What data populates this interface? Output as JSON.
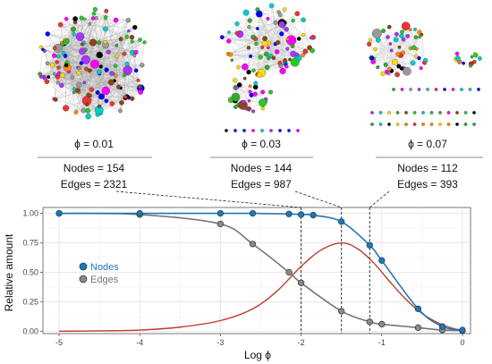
{
  "networks": [
    {
      "phi_label": "ϕ = 0.01",
      "nodes_label": "Nodes = 154",
      "edges_label": "Edges = 2321"
    },
    {
      "phi_label": "ϕ = 0.03",
      "nodes_label": "Nodes = 144",
      "edges_label": "Edges = 987"
    },
    {
      "phi_label": "ϕ = 0.07",
      "nodes_label": "Nodes = 112",
      "edges_label": "Edges = 393"
    }
  ],
  "colors": {
    "nodes": "#1f77b4",
    "edges": "#777777",
    "ratio_curve": "#c0392b",
    "network_palette": [
      "#22cc22",
      "#00cccc",
      "#0000ff",
      "#ff00ff",
      "#ffdd00",
      "#ff8800",
      "#8b4513",
      "#000000",
      "#999999",
      "#ee3333",
      "#33aa33",
      "#aa33ff"
    ]
  },
  "chart_data": {
    "type": "line",
    "xlabel": "Log ϕ",
    "ylabel": "Relative amount",
    "xlim": [
      -5.2,
      0.1
    ],
    "ylim": [
      -0.02,
      1.05
    ],
    "x_ticks": [
      -5,
      -4,
      -3,
      -2,
      -1,
      0
    ],
    "x_tick_labels": [
      "-5",
      "-4",
      "-3",
      "-2",
      "-1",
      "0"
    ],
    "y_ticks": [
      0.0,
      0.25,
      0.5,
      0.75,
      1.0
    ],
    "y_tick_labels": [
      "0.00",
      "0.25",
      "0.50",
      "0.75",
      "1.00"
    ],
    "grid": true,
    "legend_position": "left",
    "series": [
      {
        "name": "Nodes",
        "marker": "points-and-smooth-line",
        "x": [
          -5,
          -4,
          -3,
          -2.6,
          -2.15,
          -2.0,
          -1.85,
          -1.5,
          -1.15,
          -1.0,
          -0.55,
          -0.25,
          0
        ],
        "y": [
          1.0,
          1.0,
          1.0,
          1.0,
          0.995,
          0.99,
          0.985,
          0.93,
          0.73,
          0.6,
          0.19,
          0.04,
          0.01
        ]
      },
      {
        "name": "Edges",
        "marker": "points-and-smooth-line",
        "x": [
          -5,
          -4,
          -3,
          -2.6,
          -2.15,
          -2.0,
          -1.5,
          -1.15,
          -1.0,
          -0.55,
          -0.25,
          0
        ],
        "y": [
          1.0,
          0.99,
          0.91,
          0.74,
          0.5,
          0.41,
          0.17,
          0.08,
          0.06,
          0.03,
          0.01,
          0.005
        ]
      },
      {
        "marker": "line",
        "x": [
          -5,
          -4.5,
          -4,
          -3.5,
          -3,
          -2.6,
          -2.3,
          -2.0,
          -1.75,
          -1.5,
          -1.3,
          -1.1,
          -0.9,
          -0.7,
          -0.5,
          -0.3,
          -0.1,
          0
        ],
        "y": [
          0.0,
          0.003,
          0.01,
          0.035,
          0.09,
          0.19,
          0.34,
          0.55,
          0.69,
          0.75,
          0.7,
          0.58,
          0.42,
          0.27,
          0.15,
          0.07,
          0.02,
          0.01
        ]
      }
    ],
    "reference_lines_x": [
      -2.0,
      -1.5,
      -1.15
    ]
  }
}
